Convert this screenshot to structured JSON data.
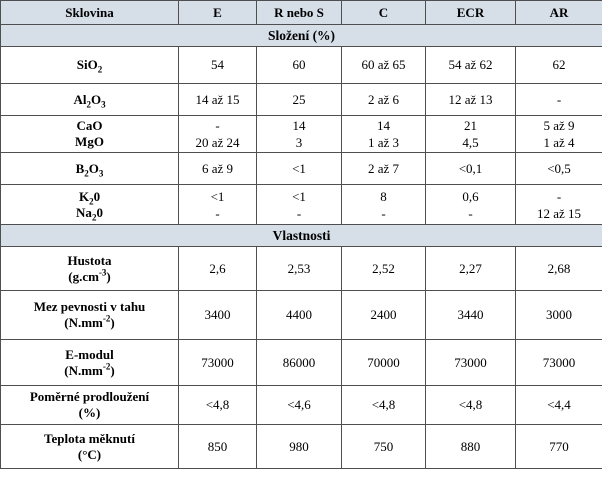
{
  "header": [
    "Sklovina",
    "E",
    "R nebo S",
    "C",
    "ECR",
    "AR"
  ],
  "section_composition": "Složení (%)",
  "section_properties": "Vlastnosti",
  "composition": [
    {
      "label_html": "SiO<sub>2</sub>",
      "values": [
        "54",
        "60",
        "60 až 65",
        "54 až 62",
        "62"
      ]
    },
    {
      "label_html": "Al<sub>2</sub>O<sub>3</sub>",
      "values": [
        "14 až 15",
        "25",
        "2 až 6",
        "12 až 13",
        "-"
      ]
    },
    {
      "label_html": "CaO<br>MgO",
      "values": [
        [
          "-",
          "20 až 24"
        ],
        [
          "14",
          "3"
        ],
        [
          "14",
          "1 až 3"
        ],
        [
          "21",
          "4,5"
        ],
        [
          "5 až 9",
          "1 až 4"
        ]
      ]
    },
    {
      "label_html": "B<sub>2</sub>O<sub>3</sub>",
      "values": [
        "6 až 9",
        "<1",
        "2 až 7",
        "<0,1",
        "<0,5"
      ]
    },
    {
      "label_html": "K<sub>2</sub>0<br>Na<sub>2</sub>0",
      "values": [
        [
          "<1",
          "-"
        ],
        [
          "<1",
          "-"
        ],
        [
          "8",
          "-"
        ],
        [
          "0,6",
          "-"
        ],
        [
          "-",
          "12 až 15"
        ]
      ]
    }
  ],
  "properties": [
    {
      "label_html": "Hustota<br>(g.cm<sup>-3</sup>)",
      "values": [
        "2,6",
        "2,53",
        "2,52",
        "2,27",
        "2,68"
      ]
    },
    {
      "label_html": "Mez pevnosti v tahu<br>(N.mm<sup>-2</sup>)",
      "values": [
        "3400",
        "4400",
        "2400",
        "3440",
        "3000"
      ]
    },
    {
      "label_html": "E-modul<br>(N.mm<sup>-2</sup>)",
      "values": [
        "73000",
        "86000",
        "70000",
        "73000",
        "73000"
      ]
    },
    {
      "label_html": "Poměrné prodloužení<br>(%)",
      "values": [
        "<4,8",
        "<4,6",
        "<4,8",
        "<4,8",
        "<4,4"
      ]
    },
    {
      "label_html": "Teplota měknutí<br>(°C)",
      "values": [
        "850",
        "980",
        "750",
        "880",
        "770"
      ]
    }
  ]
}
